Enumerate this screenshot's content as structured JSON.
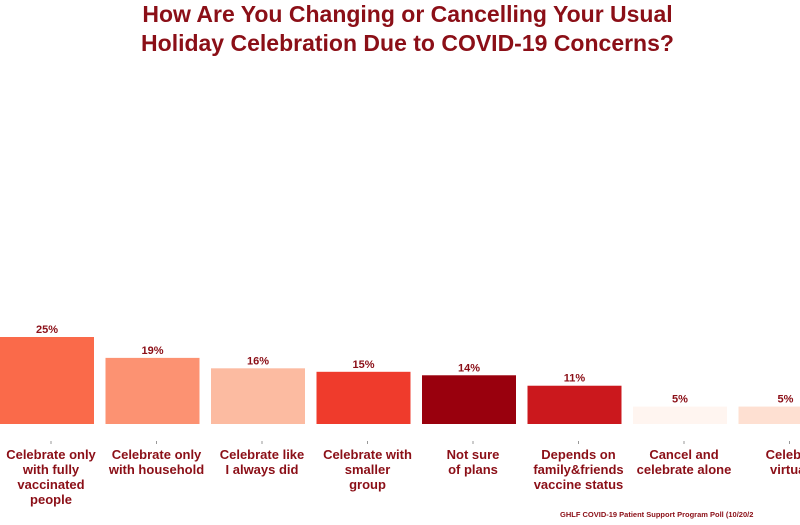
{
  "title_lines": [
    "How Are You Changing or Cancelling Your Usual",
    "Holiday Celebration Due to COVID-19 Concerns?"
  ],
  "footer": "GHLF COVID-19 Patient Support Program Poll (10/20/2",
  "chart_data": {
    "type": "bar",
    "title": "How Are You Changing or Cancelling Your Usual Holiday Celebration Due to COVID-19 Concerns?",
    "categories": [
      [
        "Celebrate only",
        "with fully",
        "vaccinated",
        "people"
      ],
      [
        "Celebrate only",
        "with household"
      ],
      [
        "Celebrate like",
        "I always did"
      ],
      [
        "Celebrate with",
        "smaller",
        "group"
      ],
      [
        "Not sure",
        "of plans"
      ],
      [
        "Depends on",
        "family&friends",
        "vaccine status"
      ],
      [
        "Cancel and",
        "celebrate alone"
      ],
      [
        "Celebra",
        "virtual"
      ]
    ],
    "values": [
      25,
      19,
      16,
      15,
      14,
      11,
      5,
      5
    ],
    "data_labels": [
      "25%",
      "19%",
      "16%",
      "15%",
      "14%",
      "11%",
      "5%",
      "5%"
    ],
    "colors": [
      "#fa6a4a",
      "#fc9272",
      "#fcbba1",
      "#ef3b2c",
      "#99000d",
      "#cb181d",
      "#fff5f0",
      "#fee0d2"
    ],
    "ylim": [
      0,
      100
    ],
    "grid": false,
    "legend": "none"
  }
}
